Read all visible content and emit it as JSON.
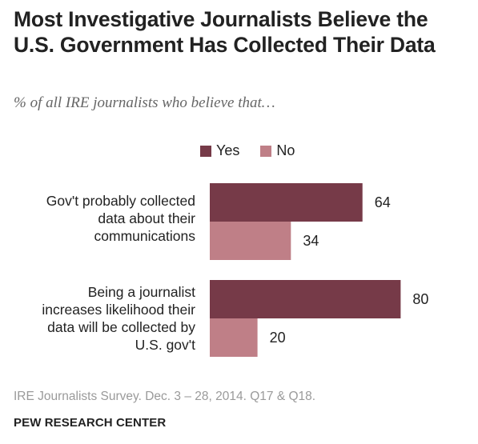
{
  "title": "Most Investigative Journalists Believe the U.S. Government Has Collected Their Data",
  "subtitle": "% of all IRE journalists who believe that…",
  "source": "IRE Journalists Survey. Dec. 3 – 28, 2014. Q17 & Q18.",
  "brand": "PEW RESEARCH CENTER",
  "colors": {
    "yes": "#763a48",
    "no": "#bf7f87"
  },
  "chart_data": {
    "type": "bar",
    "orientation": "horizontal",
    "categories": [
      "Gov't probably collected data about their communications",
      "Being a journalist increases likelihood their data will be collected by U.S. gov't"
    ],
    "category_lines": [
      [
        "Gov't probably collected",
        "data about their",
        "communications"
      ],
      [
        "Being a journalist",
        "increases likelihood their",
        "data will be collected by",
        "U.S. gov't"
      ]
    ],
    "series": [
      {
        "name": "Yes",
        "values": [
          64,
          80
        ]
      },
      {
        "name": "No",
        "values": [
          34,
          20
        ]
      }
    ],
    "legend_position": "top",
    "xlim": [
      0,
      100
    ],
    "grid": false
  }
}
